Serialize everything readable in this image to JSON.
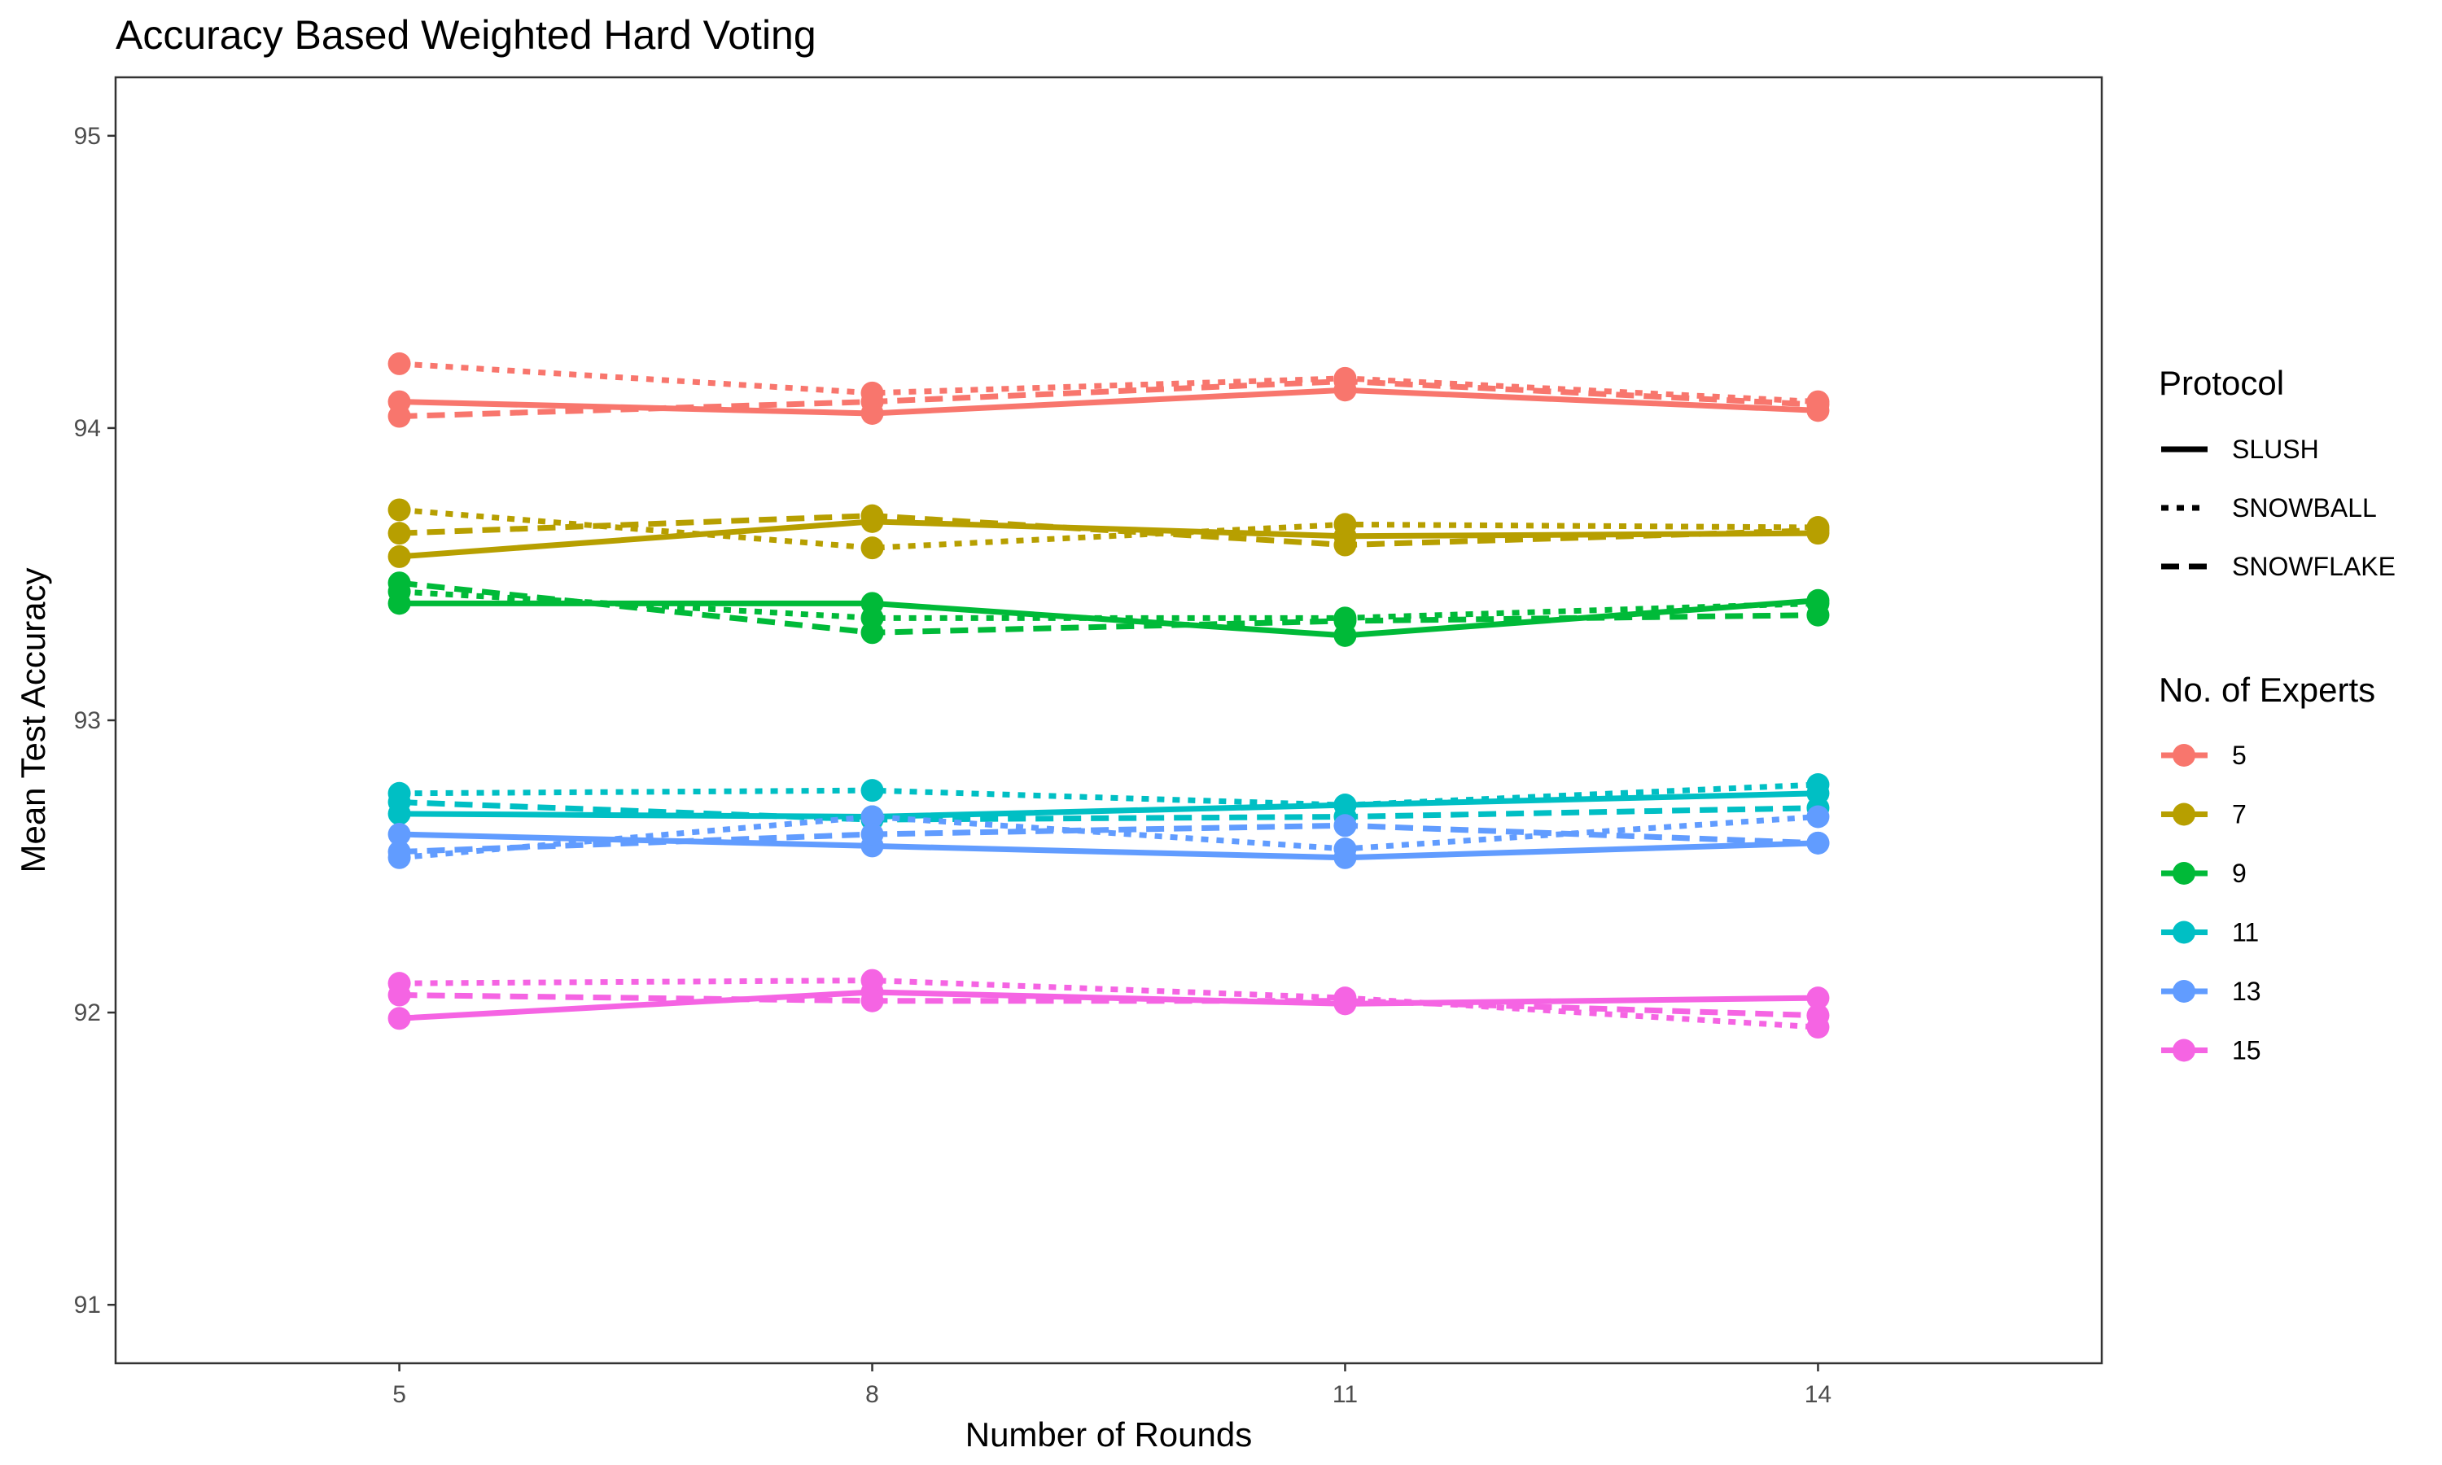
{
  "chart_data": {
    "type": "line",
    "title": "Accuracy Based Weighted Hard Voting",
    "xlabel": "Number of Rounds",
    "ylabel": "Mean Test Accuracy",
    "x": [
      5,
      8,
      11,
      14
    ],
    "x_ticks": [
      5,
      8,
      11,
      14
    ],
    "y_ticks": [
      91,
      92,
      93,
      94,
      95
    ],
    "xlim": [
      3.2,
      15.8
    ],
    "ylim": [
      90.8,
      95.2
    ],
    "grid": false,
    "legend_placement": "right",
    "legends": {
      "protocol": {
        "title": "Protocol",
        "entries": [
          {
            "label": "SLUSH",
            "dash": "solid"
          },
          {
            "label": "SNOWBALL",
            "dash": "dotted"
          },
          {
            "label": "SNOWFLAKE",
            "dash": "dashed"
          }
        ]
      },
      "experts": {
        "title": "No. of Experts",
        "entries": [
          {
            "label": "5",
            "color": "#F8766D"
          },
          {
            "label": "7",
            "color": "#B79F00"
          },
          {
            "label": "9",
            "color": "#00BA38"
          },
          {
            "label": "11",
            "color": "#00BFC4"
          },
          {
            "label": "13",
            "color": "#619CFF"
          },
          {
            "label": "15",
            "color": "#F564E3"
          }
        ]
      }
    },
    "series": [
      {
        "experts": "5",
        "protocol": "SLUSH",
        "values": [
          94.09,
          94.05,
          94.13,
          94.06
        ]
      },
      {
        "experts": "5",
        "protocol": "SNOWBALL",
        "values": [
          94.22,
          94.12,
          94.17,
          94.09
        ]
      },
      {
        "experts": "5",
        "protocol": "SNOWFLAKE",
        "values": [
          94.04,
          94.09,
          94.16,
          94.08
        ]
      },
      {
        "experts": "7",
        "protocol": "SLUSH",
        "values": [
          93.56,
          93.68,
          93.63,
          93.64
        ]
      },
      {
        "experts": "7",
        "protocol": "SNOWBALL",
        "values": [
          93.72,
          93.59,
          93.67,
          93.66
        ]
      },
      {
        "experts": "7",
        "protocol": "SNOWFLAKE",
        "values": [
          93.64,
          93.7,
          93.6,
          93.65
        ]
      },
      {
        "experts": "9",
        "protocol": "SLUSH",
        "values": [
          93.4,
          93.4,
          93.29,
          93.41
        ]
      },
      {
        "experts": "9",
        "protocol": "SNOWBALL",
        "values": [
          93.44,
          93.35,
          93.35,
          93.4
        ]
      },
      {
        "experts": "9",
        "protocol": "SNOWFLAKE",
        "values": [
          93.47,
          93.3,
          93.34,
          93.36
        ]
      },
      {
        "experts": "11",
        "protocol": "SLUSH",
        "values": [
          92.68,
          92.67,
          92.71,
          92.75
        ]
      },
      {
        "experts": "11",
        "protocol": "SNOWBALL",
        "values": [
          92.75,
          92.76,
          92.71,
          92.78
        ]
      },
      {
        "experts": "11",
        "protocol": "SNOWFLAKE",
        "values": [
          92.72,
          92.66,
          92.67,
          92.7
        ]
      },
      {
        "experts": "13",
        "protocol": "SLUSH",
        "values": [
          92.61,
          92.57,
          92.53,
          92.58
        ]
      },
      {
        "experts": "13",
        "protocol": "SNOWBALL",
        "values": [
          92.53,
          92.67,
          92.56,
          92.67
        ]
      },
      {
        "experts": "13",
        "protocol": "SNOWFLAKE",
        "values": [
          92.55,
          92.61,
          92.64,
          92.58
        ]
      },
      {
        "experts": "15",
        "protocol": "SLUSH",
        "values": [
          91.98,
          92.07,
          92.03,
          92.05
        ]
      },
      {
        "experts": "15",
        "protocol": "SNOWBALL",
        "values": [
          92.1,
          92.11,
          92.05,
          91.95
        ]
      },
      {
        "experts": "15",
        "protocol": "SNOWFLAKE",
        "values": [
          92.06,
          92.04,
          92.04,
          91.99
        ]
      }
    ]
  }
}
